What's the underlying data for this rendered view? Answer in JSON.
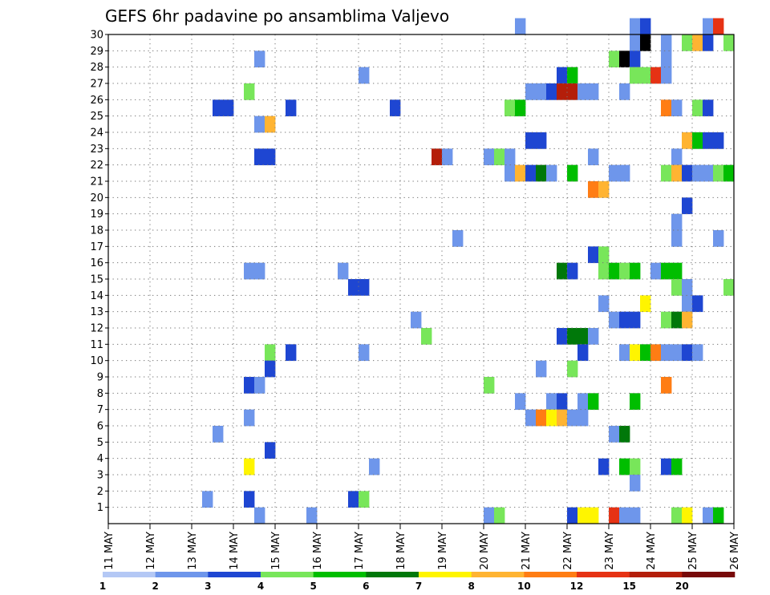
{
  "chart_data": {
    "type": "heatmap",
    "title": "GEFS 6hr padavine po ansamblima Valjevo",
    "xlabel": "",
    "ylabel": "",
    "x_ticks": [
      "11 MAY",
      "12 MAY",
      "13 MAY",
      "14 MAY",
      "15 MAY",
      "16 MAY",
      "17 MAY",
      "18 MAY",
      "19 MAY",
      "20 MAY",
      "21 MAY",
      "22 MAY",
      "23 MAY",
      "24 MAY",
      "25 MAY",
      "26 MAY"
    ],
    "xlim": [
      0,
      60
    ],
    "x_unit": "6-hour step (4 per day)",
    "y_ticks": [
      "1",
      "2",
      "3",
      "4",
      "5",
      "6",
      "7",
      "8",
      "9",
      "10",
      "11",
      "12",
      "13",
      "14",
      "15",
      "16",
      "17",
      "18",
      "19",
      "20",
      "21",
      "22",
      "23",
      "24",
      "25",
      "26",
      "27",
      "28",
      "29",
      "30"
    ],
    "ylim": [
      0,
      30
    ],
    "grid": true,
    "legend": {
      "placement": "bottom",
      "labels": [
        "1",
        "2",
        "3",
        "4",
        "5",
        "6",
        "7",
        "8",
        "10",
        "12",
        "15",
        "20"
      ],
      "colors": [
        "#b4c8f5",
        "#6e96eb",
        "#1e46d2",
        "#78e65a",
        "#00be00",
        "#00780a",
        "#fff500",
        "#ffb432",
        "#ff7d14",
        "#e63214",
        "#b41e0a",
        "#780a0a"
      ]
    },
    "cells": [
      [
        39,
        30,
        1
      ],
      [
        50,
        30,
        1
      ],
      [
        51,
        30,
        2
      ],
      [
        57,
        30,
        1
      ],
      [
        58,
        30,
        9
      ],
      [
        50,
        29,
        1
      ],
      [
        51,
        29,
        12
      ],
      [
        53,
        29,
        1
      ],
      [
        55,
        29,
        3
      ],
      [
        56,
        29,
        7
      ],
      [
        57,
        29,
        2
      ],
      [
        59,
        29,
        3
      ],
      [
        14,
        28,
        1
      ],
      [
        48,
        28,
        3
      ],
      [
        49,
        28,
        12
      ],
      [
        50,
        28,
        2
      ],
      [
        53,
        28,
        1
      ],
      [
        24,
        27,
        1
      ],
      [
        43,
        27,
        2
      ],
      [
        44,
        27,
        4
      ],
      [
        50,
        27,
        3
      ],
      [
        51,
        27,
        3
      ],
      [
        52,
        27,
        9
      ],
      [
        53,
        27,
        1
      ],
      [
        13,
        26,
        3
      ],
      [
        40,
        26,
        1
      ],
      [
        41,
        26,
        1
      ],
      [
        42,
        26,
        2
      ],
      [
        43,
        26,
        10
      ],
      [
        44,
        26,
        10
      ],
      [
        45,
        26,
        1
      ],
      [
        46,
        26,
        1
      ],
      [
        49,
        26,
        1
      ],
      [
        10,
        25,
        2
      ],
      [
        11,
        25,
        2
      ],
      [
        17,
        25,
        2
      ],
      [
        27,
        25,
        2
      ],
      [
        38,
        25,
        3
      ],
      [
        39,
        25,
        4
      ],
      [
        53,
        25,
        8
      ],
      [
        54,
        25,
        1
      ],
      [
        56,
        25,
        3
      ],
      [
        57,
        25,
        2
      ],
      [
        14,
        24,
        1
      ],
      [
        15,
        24,
        7
      ],
      [
        40,
        23,
        2
      ],
      [
        41,
        23,
        2
      ],
      [
        55,
        23,
        7
      ],
      [
        56,
        23,
        4
      ],
      [
        57,
        23,
        2
      ],
      [
        58,
        23,
        2
      ],
      [
        14,
        22,
        2
      ],
      [
        15,
        22,
        2
      ],
      [
        31,
        22,
        10
      ],
      [
        32,
        22,
        1
      ],
      [
        36,
        22,
        1
      ],
      [
        37,
        22,
        3
      ],
      [
        38,
        22,
        1
      ],
      [
        46,
        22,
        1
      ],
      [
        54,
        22,
        1
      ],
      [
        38,
        21,
        1
      ],
      [
        39,
        21,
        7
      ],
      [
        40,
        21,
        2
      ],
      [
        41,
        21,
        5
      ],
      [
        42,
        21,
        1
      ],
      [
        44,
        21,
        4
      ],
      [
        48,
        21,
        1
      ],
      [
        49,
        21,
        1
      ],
      [
        53,
        21,
        3
      ],
      [
        54,
        21,
        7
      ],
      [
        55,
        21,
        2
      ],
      [
        56,
        21,
        1
      ],
      [
        57,
        21,
        1
      ],
      [
        58,
        21,
        3
      ],
      [
        59,
        21,
        4
      ],
      [
        46,
        20,
        8
      ],
      [
        47,
        20,
        7
      ],
      [
        55,
        19,
        2
      ],
      [
        54,
        18,
        1
      ],
      [
        33,
        17,
        1
      ],
      [
        54,
        17,
        1
      ],
      [
        58,
        17,
        1
      ],
      [
        46,
        16,
        2
      ],
      [
        47,
        16,
        3
      ],
      [
        13,
        15,
        1
      ],
      [
        14,
        15,
        1
      ],
      [
        22,
        15,
        1
      ],
      [
        43,
        15,
        5
      ],
      [
        44,
        15,
        2
      ],
      [
        47,
        15,
        3
      ],
      [
        48,
        15,
        4
      ],
      [
        49,
        15,
        3
      ],
      [
        50,
        15,
        4
      ],
      [
        52,
        15,
        1
      ],
      [
        53,
        15,
        4
      ],
      [
        54,
        15,
        4
      ],
      [
        23,
        14,
        2
      ],
      [
        24,
        14,
        2
      ],
      [
        54,
        14,
        3
      ],
      [
        55,
        14,
        1
      ],
      [
        59,
        14,
        3
      ],
      [
        47,
        13,
        1
      ],
      [
        51,
        13,
        6
      ],
      [
        55,
        13,
        1
      ],
      [
        56,
        13,
        2
      ],
      [
        29,
        12,
        1
      ],
      [
        48,
        12,
        1
      ],
      [
        49,
        12,
        2
      ],
      [
        50,
        12,
        2
      ],
      [
        53,
        12,
        3
      ],
      [
        54,
        12,
        5
      ],
      [
        55,
        12,
        7
      ],
      [
        30,
        11,
        3
      ],
      [
        43,
        11,
        2
      ],
      [
        44,
        11,
        5
      ],
      [
        45,
        11,
        5
      ],
      [
        46,
        11,
        1
      ],
      [
        15,
        10,
        3
      ],
      [
        17,
        10,
        2
      ],
      [
        24,
        10,
        1
      ],
      [
        45,
        10,
        2
      ],
      [
        49,
        10,
        1
      ],
      [
        50,
        10,
        6
      ],
      [
        51,
        10,
        4
      ],
      [
        52,
        10,
        8
      ],
      [
        53,
        10,
        1
      ],
      [
        54,
        10,
        1
      ],
      [
        55,
        10,
        2
      ],
      [
        56,
        10,
        1
      ],
      [
        15,
        9,
        2
      ],
      [
        41,
        9,
        1
      ],
      [
        44,
        9,
        3
      ],
      [
        13,
        8,
        2
      ],
      [
        14,
        8,
        1
      ],
      [
        36,
        8,
        3
      ],
      [
        53,
        8,
        8
      ],
      [
        39,
        7,
        1
      ],
      [
        42,
        7,
        1
      ],
      [
        43,
        7,
        2
      ],
      [
        45,
        7,
        1
      ],
      [
        46,
        7,
        4
      ],
      [
        50,
        7,
        4
      ],
      [
        13,
        6,
        1
      ],
      [
        40,
        6,
        1
      ],
      [
        41,
        6,
        8
      ],
      [
        42,
        6,
        6
      ],
      [
        43,
        6,
        7
      ],
      [
        44,
        6,
        1
      ],
      [
        45,
        6,
        1
      ],
      [
        10,
        5,
        1
      ],
      [
        48,
        5,
        1
      ],
      [
        49,
        5,
        5
      ],
      [
        15,
        4,
        2
      ],
      [
        13,
        3,
        6
      ],
      [
        25,
        3,
        1
      ],
      [
        47,
        3,
        2
      ],
      [
        49,
        3,
        4
      ],
      [
        50,
        3,
        3
      ],
      [
        53,
        3,
        2
      ],
      [
        54,
        3,
        4
      ],
      [
        50,
        2,
        1
      ],
      [
        9,
        1,
        1
      ],
      [
        13,
        1,
        2
      ],
      [
        23,
        1,
        2
      ],
      [
        24,
        1,
        3
      ],
      [
        14,
        0,
        1
      ],
      [
        19,
        0,
        1
      ],
      [
        36,
        0,
        1
      ],
      [
        37,
        0,
        3
      ],
      [
        44,
        0,
        2
      ],
      [
        45,
        0,
        6
      ],
      [
        46,
        0,
        6
      ],
      [
        48,
        0,
        9
      ],
      [
        49,
        0,
        1
      ],
      [
        50,
        0,
        1
      ],
      [
        54,
        0,
        3
      ],
      [
        55,
        0,
        6
      ],
      [
        57,
        0,
        1
      ],
      [
        58,
        0,
        4
      ]
    ]
  }
}
